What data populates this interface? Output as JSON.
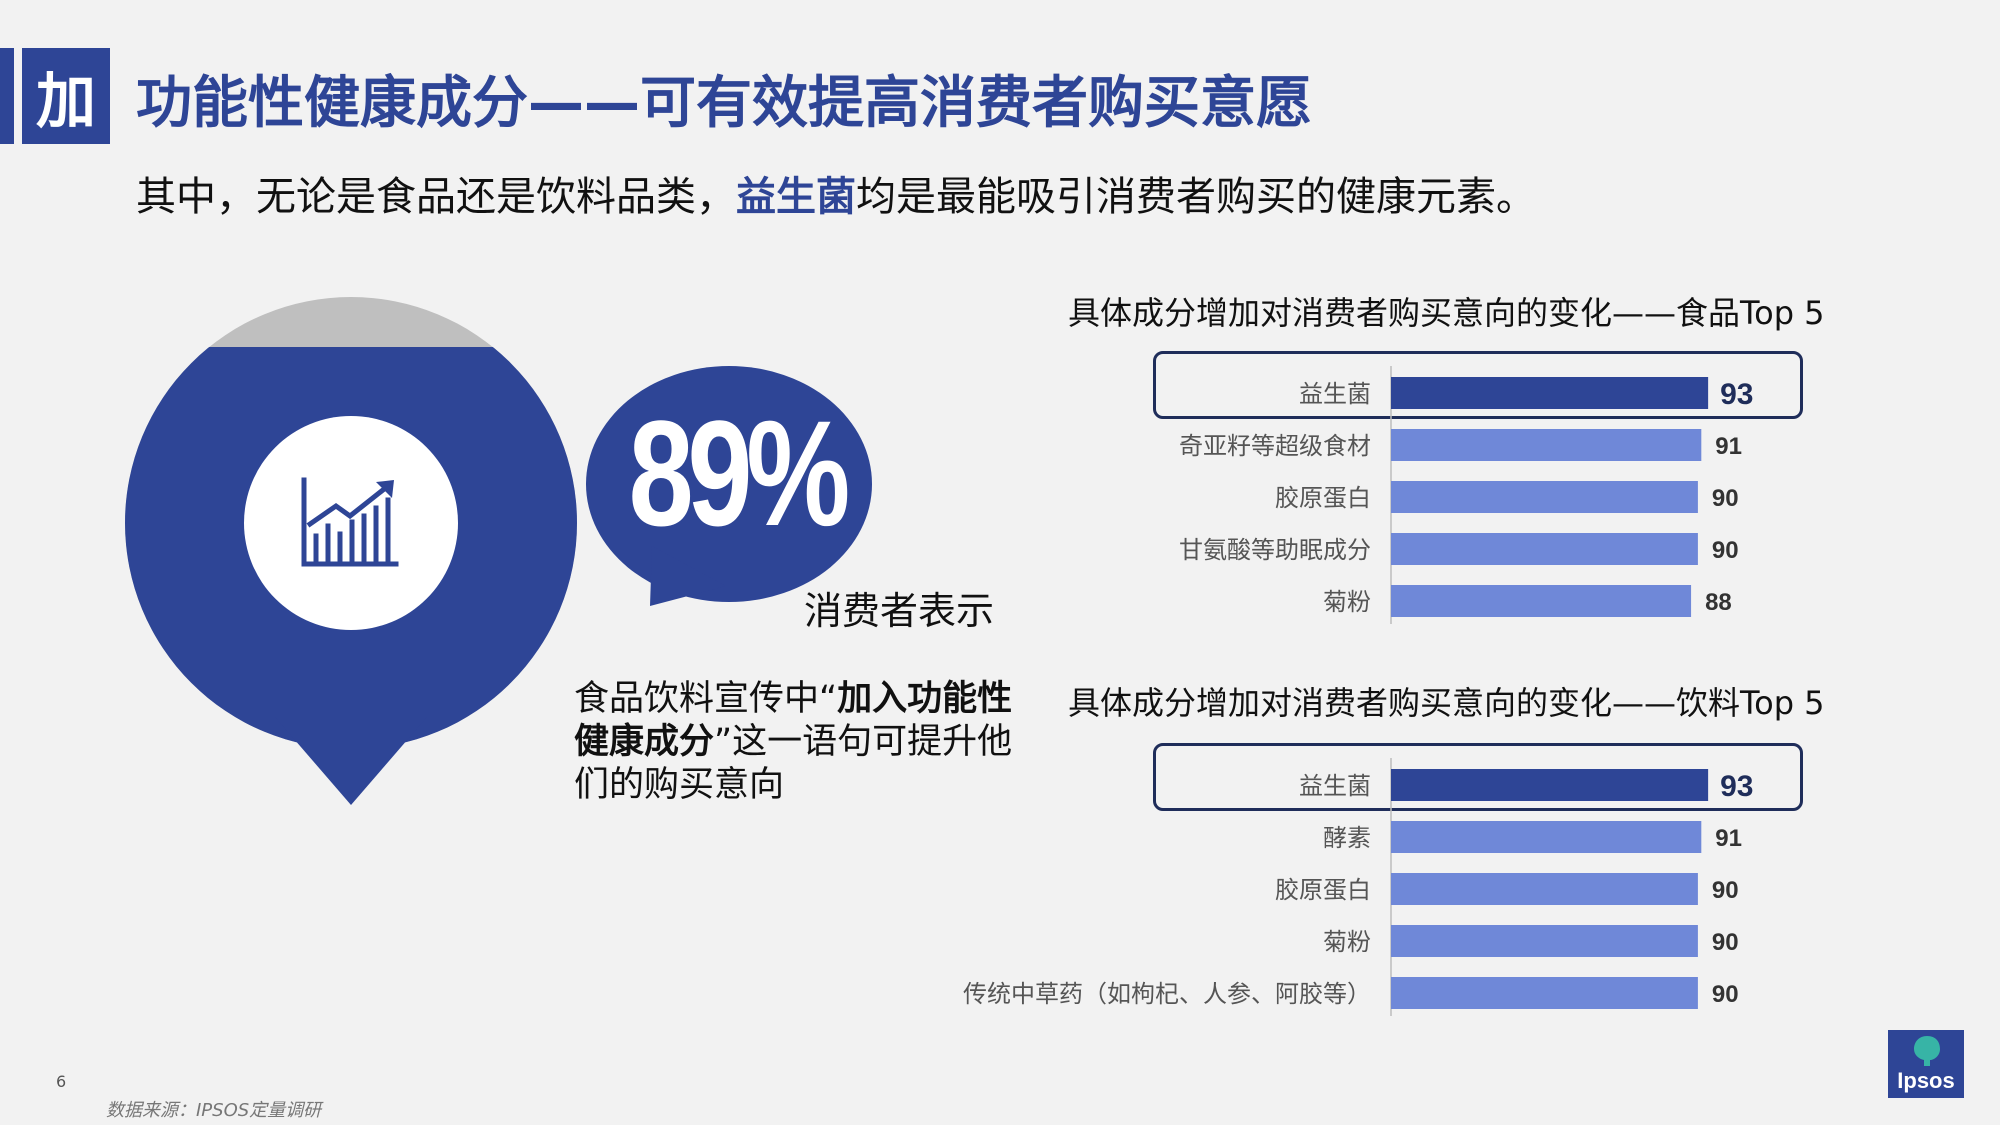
{
  "header": {
    "tag": "加",
    "title": "功能性健康成分——可有效提高消费者购买意愿",
    "subtitle_before": "其中，无论是食品还是饮料品类，",
    "subtitle_highlight": "益生菌",
    "subtitle_after": "均是最能吸引消费者购买的健康元素。"
  },
  "callout": {
    "percent": "89%",
    "consumer_say": "消费者表示",
    "desc_before": "食品饮料宣传中“",
    "desc_bold": "加入功能性健康成分",
    "desc_after": "”这一语句可提升他们的购买意向"
  },
  "chart_data": [
    {
      "type": "bar",
      "orientation": "horizontal",
      "title": "具体成分增加对消费者购买意向的变化——食品Top 5",
      "categories": [
        "益生菌",
        "奇亚籽等超级食材",
        "胶原蛋白",
        "甘氨酸等助眠成分",
        "菊粉"
      ],
      "values": [
        93,
        91,
        90,
        90,
        88
      ],
      "highlight_index": 0,
      "colors": {
        "highlight": "#2e4596",
        "normal": "#6f88d8"
      }
    },
    {
      "type": "bar",
      "orientation": "horizontal",
      "title": "具体成分增加对消费者购买意向的变化——饮料Top 5",
      "categories": [
        "益生菌",
        "酵素",
        "胶原蛋白",
        "菊粉",
        "传统中草药（如枸杞、人参、阿胶等）"
      ],
      "values": [
        93,
        91,
        90,
        90,
        90
      ],
      "highlight_index": 0,
      "colors": {
        "highlight": "#2e4596",
        "normal": "#6f88d8"
      }
    }
  ],
  "footer": {
    "page_number": "6",
    "source": "数据来源：IPSOS定量调研",
    "logo": "Ipsos"
  },
  "icons": {
    "pin": "chart-growth-icon"
  }
}
